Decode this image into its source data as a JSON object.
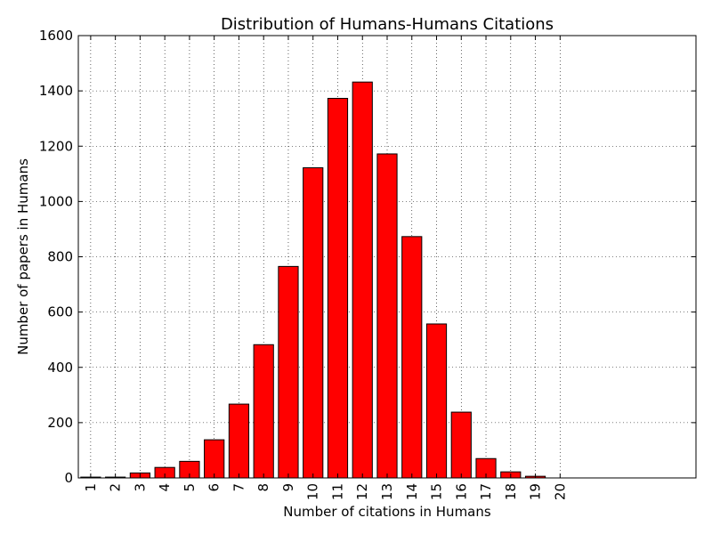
{
  "chart_data": {
    "type": "bar",
    "title": "Distribution of Humans-Humans Citations",
    "xlabel": "Number of citations in Humans",
    "ylabel": "Number of papers in Humans",
    "categories": [
      "1",
      "2",
      "3",
      "4",
      "5",
      "6",
      "7",
      "8",
      "9",
      "10",
      "11",
      "12",
      "13",
      "14",
      "15",
      "16",
      "17",
      "18",
      "19",
      "20"
    ],
    "values": [
      3,
      3,
      18,
      38,
      60,
      138,
      267,
      482,
      765,
      1122,
      1373,
      1432,
      1172,
      873,
      557,
      238,
      70,
      22,
      6,
      0
    ],
    "ylim": [
      0,
      1600
    ],
    "yticks": [
      0,
      200,
      400,
      600,
      800,
      1000,
      1200,
      1400,
      1600
    ],
    "xlim": [
      0.5,
      25.5
    ],
    "grid": true,
    "bar_color": "#ff0000",
    "edge_color": "#000000"
  }
}
